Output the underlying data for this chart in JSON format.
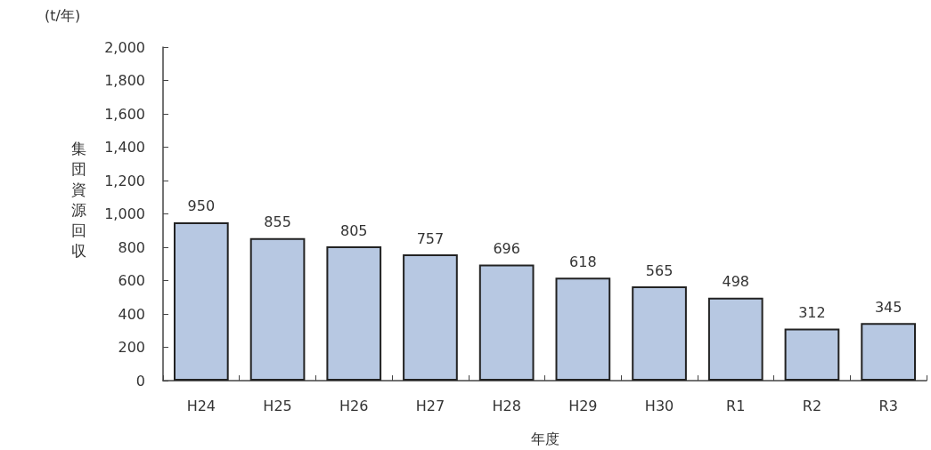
{
  "chart_data": {
    "type": "bar",
    "ylabel": "集団資源回収",
    "xlabel": "年度",
    "annotations": [
      "(t/年)"
    ],
    "categories": [
      "H24",
      "H25",
      "H26",
      "H27",
      "H28",
      "H29",
      "H30",
      "R1",
      "R2",
      "R3"
    ],
    "values": [
      950,
      855,
      805,
      757,
      696,
      618,
      565,
      498,
      312,
      345
    ],
    "color": "#b7c8e2",
    "ylim": [
      0,
      2000
    ],
    "yticks": [
      0,
      200,
      400,
      600,
      800,
      {
        "value": 1000,
        "label": "1,000"
      },
      {
        "value": 1200,
        "label": "1,200"
      },
      {
        "value": 1400,
        "label": "1,400"
      },
      {
        "value": 1600,
        "label": "1,600"
      },
      {
        "value": 1800,
        "label": "1,800"
      },
      {
        "value": 2000,
        "label": "2,000"
      }
    ],
    "data_labels": true
  }
}
